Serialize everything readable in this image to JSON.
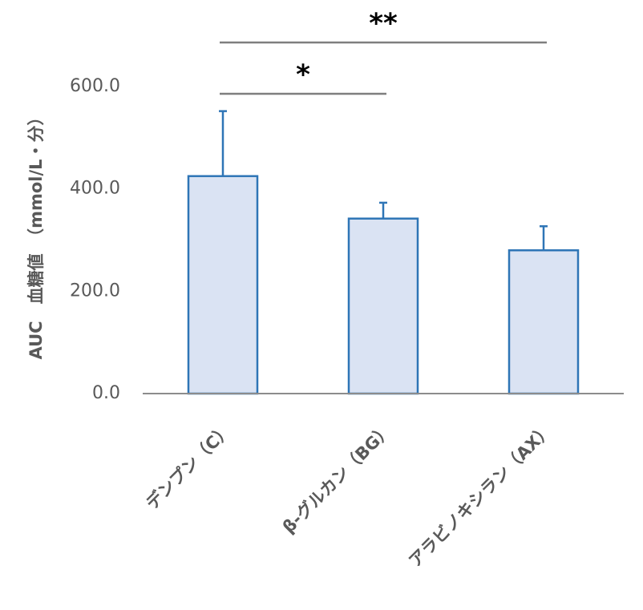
{
  "chart_data": {
    "type": "bar",
    "y_label": "AUC　血糖値　（mmol/L・分）",
    "categories": [
      "デンプン（C）",
      "β-グルカン（BG）",
      "アラビノキシラン（AX）"
    ],
    "values": [
      425,
      342,
      280
    ],
    "errors": [
      127,
      31,
      47
    ],
    "color": "#dae3f3",
    "edge_color": "#2e75b6",
    "ylim": [
      0,
      600
    ],
    "yticks": [
      {
        "value": 0,
        "label": "0.0"
      },
      {
        "value": 200,
        "label": "200.0"
      },
      {
        "value": 400,
        "label": "400.0"
      },
      {
        "value": 600,
        "label": "600.0"
      }
    ],
    "grid": false,
    "annotations": [
      "*",
      "**"
    ]
  }
}
